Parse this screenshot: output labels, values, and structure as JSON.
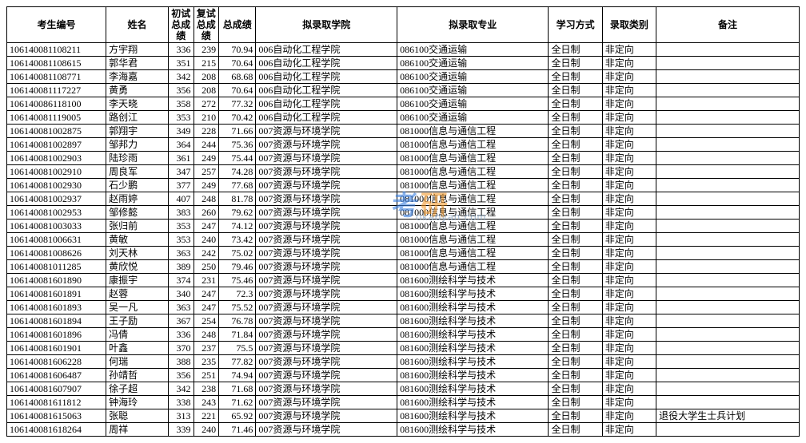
{
  "headers": [
    "考生编号",
    "姓名",
    "初试总成绩",
    "复试总成绩",
    "总成绩",
    "拟录取学院",
    "拟录取专业",
    "学习方式",
    "录取类别",
    "备注"
  ],
  "watermark": {
    "text": "考研",
    "url": "okaoyan.com"
  },
  "rows": [
    [
      "106140081108211",
      "方宇翔",
      "336",
      "239",
      "70.94",
      "006自动化工程学院",
      "086100交通运输",
      "全日制",
      "非定向",
      ""
    ],
    [
      "106140081108615",
      "郭华君",
      "351",
      "215",
      "70.64",
      "006自动化工程学院",
      "086100交通运输",
      "全日制",
      "非定向",
      ""
    ],
    [
      "106140081108771",
      "李海嘉",
      "342",
      "208",
      "68.68",
      "006自动化工程学院",
      "086100交通运输",
      "全日制",
      "非定向",
      ""
    ],
    [
      "106140081117227",
      "黄勇",
      "356",
      "208",
      "70.64",
      "006自动化工程学院",
      "086100交通运输",
      "全日制",
      "非定向",
      ""
    ],
    [
      "106140086118100",
      "李天晓",
      "358",
      "272",
      "77.32",
      "006自动化工程学院",
      "086100交通运输",
      "全日制",
      "非定向",
      ""
    ],
    [
      "106140081119005",
      "路创江",
      "353",
      "210",
      "70.42",
      "006自动化工程学院",
      "086100交通运输",
      "全日制",
      "非定向",
      ""
    ],
    [
      "106140081002875",
      "郭翔宇",
      "349",
      "228",
      "71.66",
      "007资源与环境学院",
      "081000信息与通信工程",
      "全日制",
      "非定向",
      ""
    ],
    [
      "106140081002897",
      "邹邦力",
      "364",
      "244",
      "75.36",
      "007资源与环境学院",
      "081000信息与通信工程",
      "全日制",
      "非定向",
      ""
    ],
    [
      "106140081002903",
      "陆珍雨",
      "361",
      "249",
      "75.44",
      "007资源与环境学院",
      "081000信息与通信工程",
      "全日制",
      "非定向",
      ""
    ],
    [
      "106140081002910",
      "周良军",
      "347",
      "257",
      "74.28",
      "007资源与环境学院",
      "081000信息与通信工程",
      "全日制",
      "非定向",
      ""
    ],
    [
      "106140081002930",
      "石少鹏",
      "377",
      "249",
      "77.68",
      "007资源与环境学院",
      "081000信息与通信工程",
      "全日制",
      "非定向",
      ""
    ],
    [
      "106140081002937",
      "赵雨婷",
      "407",
      "248",
      "81.78",
      "007资源与环境学院",
      "081000信息与通信工程",
      "全日制",
      "非定向",
      ""
    ],
    [
      "106140081002953",
      "邹修懿",
      "383",
      "260",
      "79.62",
      "007资源与环境学院",
      "081000信息与通信工程",
      "全日制",
      "非定向",
      ""
    ],
    [
      "106140081003033",
      "张归前",
      "353",
      "247",
      "74.12",
      "007资源与环境学院",
      "081000信息与通信工程",
      "全日制",
      "非定向",
      ""
    ],
    [
      "106140081006631",
      "黄敏",
      "353",
      "240",
      "73.42",
      "007资源与环境学院",
      "081000信息与通信工程",
      "全日制",
      "非定向",
      ""
    ],
    [
      "106140081008626",
      "刘天林",
      "363",
      "242",
      "75.02",
      "007资源与环境学院",
      "081000信息与通信工程",
      "全日制",
      "非定向",
      ""
    ],
    [
      "106140081011285",
      "黄欣悦",
      "389",
      "250",
      "79.46",
      "007资源与环境学院",
      "081000信息与通信工程",
      "全日制",
      "非定向",
      ""
    ],
    [
      "106140081601890",
      "康振宇",
      "374",
      "231",
      "75.46",
      "007资源与环境学院",
      "081600测绘科学与技术",
      "全日制",
      "非定向",
      ""
    ],
    [
      "106140081601891",
      "赵蓉",
      "340",
      "247",
      "72.3",
      "007资源与环境学院",
      "081600测绘科学与技术",
      "全日制",
      "非定向",
      ""
    ],
    [
      "106140081601893",
      "吴一凡",
      "363",
      "247",
      "75.52",
      "007资源与环境学院",
      "081600测绘科学与技术",
      "全日制",
      "非定向",
      ""
    ],
    [
      "106140081601894",
      "王子励",
      "367",
      "254",
      "76.78",
      "007资源与环境学院",
      "081600测绘科学与技术",
      "全日制",
      "非定向",
      ""
    ],
    [
      "106140081601896",
      "冯倩",
      "336",
      "248",
      "71.84",
      "007资源与环境学院",
      "081600测绘科学与技术",
      "全日制",
      "非定向",
      ""
    ],
    [
      "106140081601901",
      "叶鑫",
      "370",
      "237",
      "75.5",
      "007资源与环境学院",
      "081600测绘科学与技术",
      "全日制",
      "非定向",
      ""
    ],
    [
      "106140081606228",
      "何瑞",
      "388",
      "235",
      "77.82",
      "007资源与环境学院",
      "081600测绘科学与技术",
      "全日制",
      "非定向",
      ""
    ],
    [
      "106140081606487",
      "孙靖哲",
      "356",
      "251",
      "74.94",
      "007资源与环境学院",
      "081600测绘科学与技术",
      "全日制",
      "非定向",
      ""
    ],
    [
      "106140081607907",
      "徐子超",
      "342",
      "238",
      "71.68",
      "007资源与环境学院",
      "081600测绘科学与技术",
      "全日制",
      "非定向",
      ""
    ],
    [
      "106140081611812",
      "钟海玲",
      "338",
      "243",
      "71.62",
      "007资源与环境学院",
      "081600测绘科学与技术",
      "全日制",
      "非定向",
      ""
    ],
    [
      "106140081615063",
      "张聪",
      "313",
      "221",
      "65.92",
      "007资源与环境学院",
      "081600测绘科学与技术",
      "全日制",
      "非定向",
      "退役大学生士兵计划"
    ],
    [
      "106140081618264",
      "周祥",
      "339",
      "240",
      "71.46",
      "007资源与环境学院",
      "081600测绘科学与技术",
      "全日制",
      "非定向",
      ""
    ]
  ]
}
